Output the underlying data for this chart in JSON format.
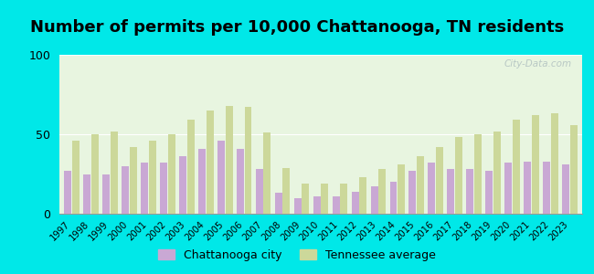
{
  "title": "Number of permits per 10,000 Chattanooga, TN residents",
  "years": [
    1997,
    1998,
    1999,
    2000,
    2001,
    2002,
    2003,
    2004,
    2005,
    2006,
    2007,
    2008,
    2009,
    2010,
    2011,
    2012,
    2013,
    2014,
    2015,
    2016,
    2017,
    2018,
    2019,
    2020,
    2021,
    2022,
    2023
  ],
  "chattanooga": [
    27,
    25,
    25,
    30,
    32,
    32,
    36,
    41,
    46,
    41,
    28,
    13,
    10,
    11,
    11,
    14,
    17,
    20,
    27,
    32,
    28,
    28,
    27,
    32,
    33,
    33,
    31
  ],
  "tennessee": [
    46,
    50,
    52,
    42,
    46,
    50,
    59,
    65,
    68,
    67,
    51,
    29,
    19,
    19,
    19,
    23,
    28,
    31,
    36,
    42,
    48,
    50,
    52,
    59,
    62,
    63,
    56
  ],
  "bar_color_chattanooga": "#c9a8d4",
  "bar_color_tennessee": "#ccd89a",
  "background_outer": "#00e8e8",
  "background_plot": "#e8f5e0",
  "ylim": [
    0,
    100
  ],
  "yticks": [
    0,
    50,
    100
  ],
  "title_fontsize": 13,
  "legend_label_city": "Chattanooga city",
  "legend_label_state": "Tennessee average",
  "watermark": "City-Data.com"
}
